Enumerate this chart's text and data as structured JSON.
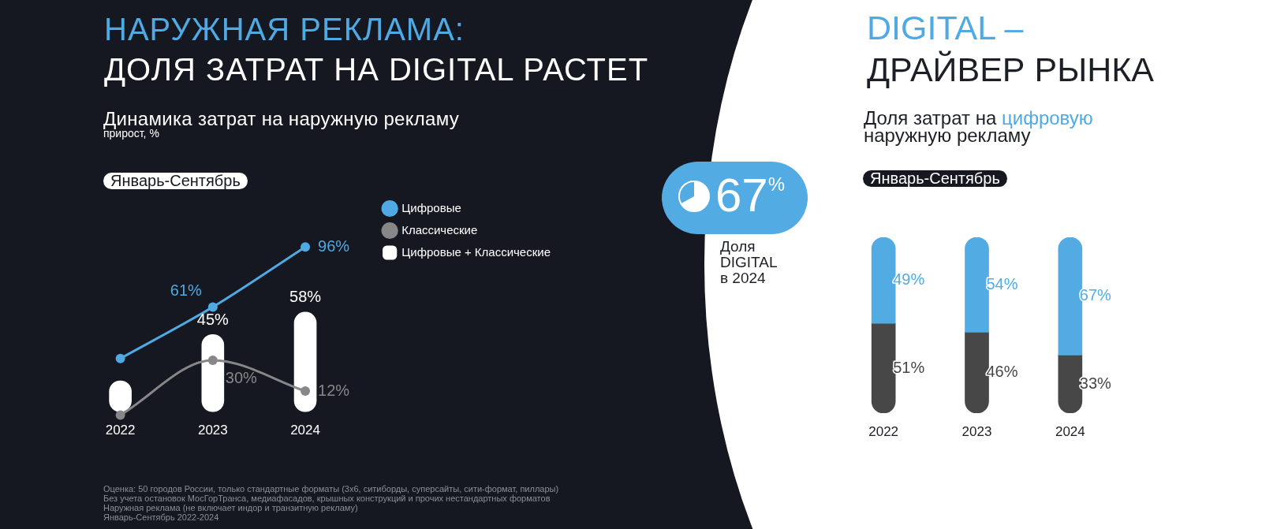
{
  "chart_data": [
    {
      "type": "bar",
      "title": "НАРУЖНАЯ РЕКЛАМА:",
      "subtitle": "ДОЛЯ ЗАТРАТ НА DIGITAL РАСТЕТ",
      "annotations": [
        "Динамика затрат на наружную рекламу",
        "прирост, %",
        "Январь-Сентябрь",
        "Оценка: 50 городов России, только стандартные форматы (3х6, ситиборды, суперсайты, сити-формат, пиллары)",
        "Без учета остановок МосГорТранса, медиафасадов, крышных конструкций и прочих нестандартных форматов",
        "Наружная реклама (не включает индор и транзитную рекламу)",
        "Январь-Сентябрь 2022-2024"
      ],
      "categories": [
        "2022",
        "2023",
        "2024"
      ],
      "series": [
        {
          "name": "Цифровые",
          "type": "line",
          "color": "#4fa9e2",
          "values": [
            31,
            61,
            96
          ],
          "value_labels": [
            null,
            "61%",
            "96%"
          ]
        },
        {
          "name": "Классические",
          "type": "line",
          "color": "#878787",
          "values": [
            -2,
            30,
            12
          ],
          "value_labels": [
            null,
            "30%",
            "12%"
          ]
        },
        {
          "name": "Цифровые + Классические",
          "type": "bar",
          "color": "#ffffff",
          "values": [
            18,
            45,
            58
          ],
          "value_labels": [
            null,
            "45%",
            "58%"
          ]
        }
      ],
      "tick_labels": "x",
      "legend": "top right",
      "marker": "circle"
    },
    {
      "type": "other",
      "title": "67$^{%}$",
      "subtitle": "Доля DIGITAL в 2024"
    },
    {
      "type": "bar",
      "title": "DIGITAL –",
      "subtitle": "ДРАЙВЕР РЫНКА",
      "annotations": [
        "Доля затрат на",
        "цифровую",
        "наружную рекламу",
        "Январь-Сентябрь"
      ],
      "categories": [
        "2022",
        "2023",
        "2024"
      ],
      "stacked": true,
      "series": [
        {
          "color": "#474747",
          "values": [
            51,
            46,
            33
          ],
          "value_labels": [
            "51%",
            "46%",
            "33%"
          ]
        },
        {
          "color": "#52abe2",
          "values": [
            49,
            54,
            67
          ],
          "value_labels": [
            "49%",
            "54%",
            "67%"
          ]
        }
      ],
      "tick_labels": "x"
    }
  ]
}
